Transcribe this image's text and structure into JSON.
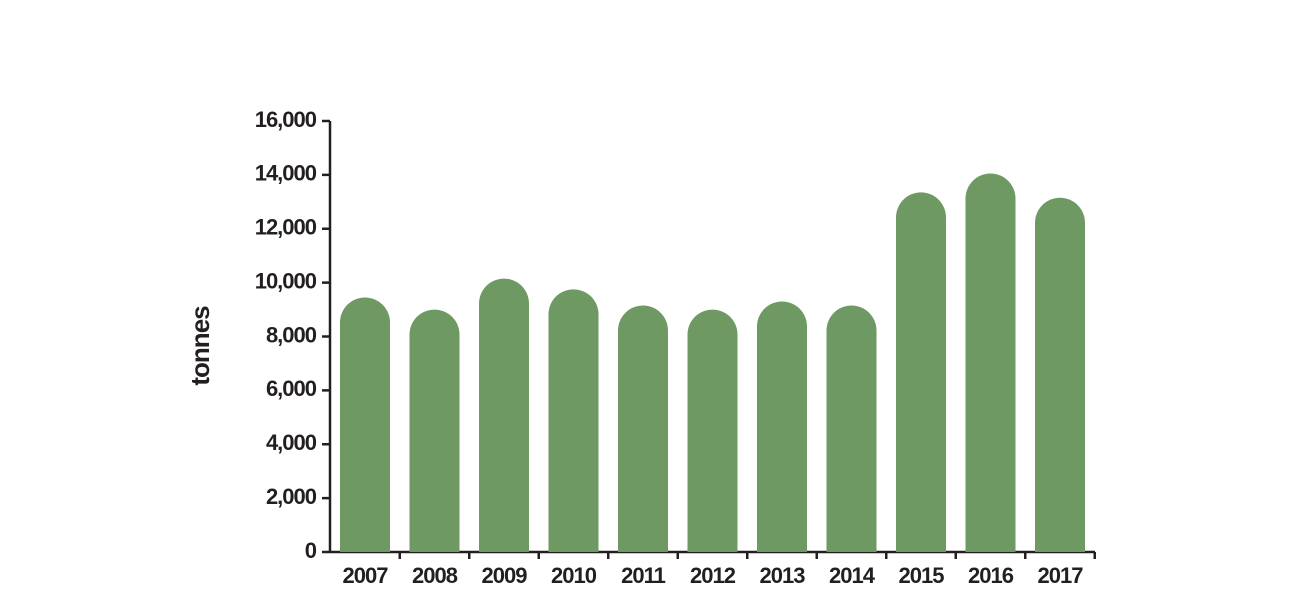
{
  "chart_data": {
    "type": "bar",
    "y_label": "tonnes",
    "categories": [
      "2007",
      "2008",
      "2009",
      "2010",
      "2011",
      "2012",
      "2013",
      "2014",
      "2015",
      "2016",
      "2017"
    ],
    "values": [
      9450,
      9000,
      10150,
      9750,
      9150,
      9000,
      9300,
      9150,
      13350,
      14050,
      13150
    ],
    "color": "#6e9962",
    "ylim": [
      0,
      16000
    ],
    "yticks": [
      0,
      {
        "value": 2000,
        "label": "2,000"
      },
      {
        "value": 4000,
        "label": "4,000"
      },
      {
        "value": 6000,
        "label": "6,000"
      },
      {
        "value": 8000,
        "label": "8,000"
      },
      {
        "value": 10000,
        "label": "10,000"
      },
      {
        "value": 12000,
        "label": "12,000"
      },
      {
        "value": 14000,
        "label": "14,000"
      },
      {
        "value": 16000,
        "label": "16,000"
      }
    ]
  }
}
